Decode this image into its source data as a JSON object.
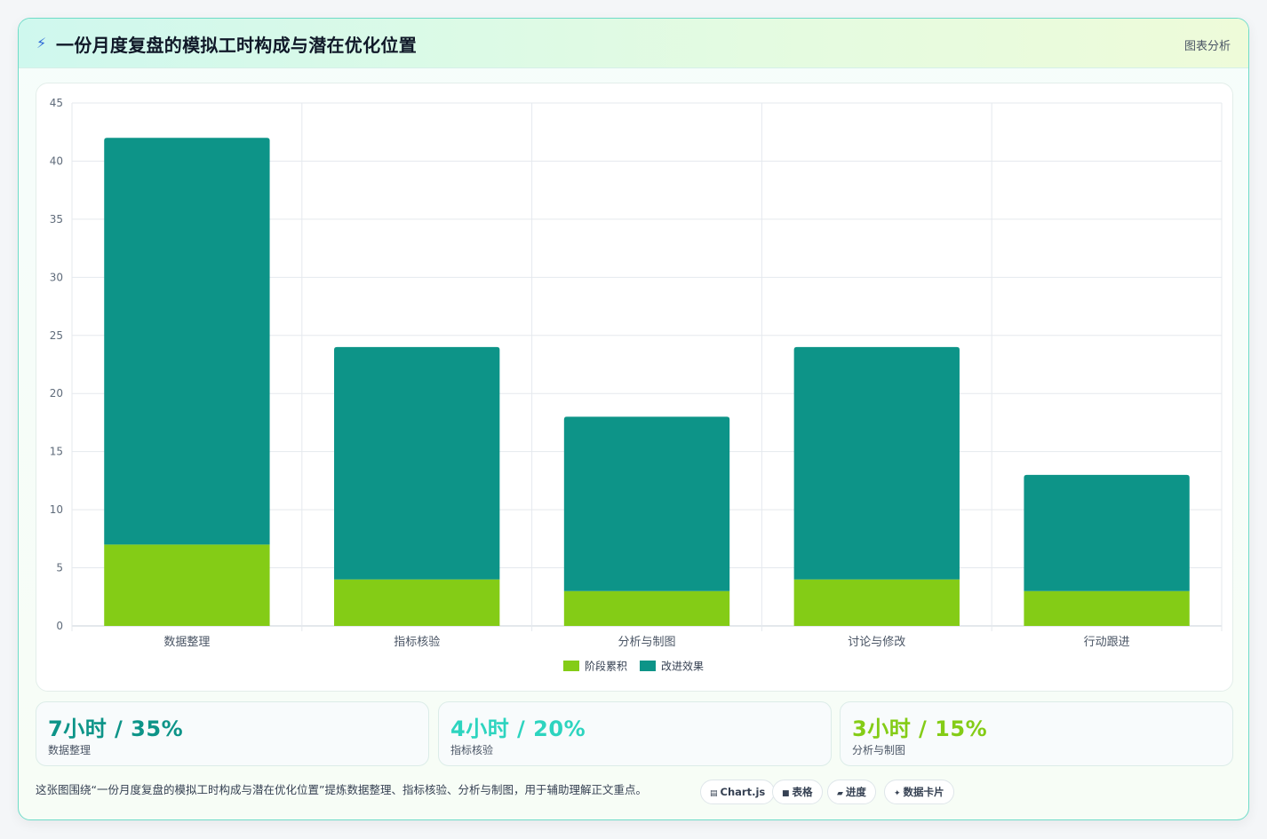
{
  "header": {
    "icon": "lightning-icon",
    "title": "一份月度复盘的模拟工时构成与潜在优化位置",
    "tag": "图表分析"
  },
  "chart_data": {
    "type": "bar",
    "stacked": true,
    "categories": [
      "数据整理",
      "指标核验",
      "分析与制图",
      "讨论与修改",
      "行动跟进"
    ],
    "series": [
      {
        "name": "阶段累积",
        "color": "#84cc16",
        "values": [
          7,
          4,
          3,
          4,
          3
        ]
      },
      {
        "name": "改进效果",
        "color": "#0d9488",
        "values": [
          35,
          20,
          15,
          20,
          10
        ]
      }
    ],
    "ylim": [
      0,
      45
    ],
    "yticks": [
      0,
      5,
      10,
      15,
      20,
      25,
      30,
      35,
      40,
      45
    ],
    "grid": true,
    "legend": "bottom"
  },
  "stats": [
    {
      "value": "7小时 / 35%",
      "label": "数据整理",
      "color": "#0d9488"
    },
    {
      "value": "4小时 / 20%",
      "label": "指标核验",
      "color": "#2dd4bf"
    },
    {
      "value": "3小时 / 15%",
      "label": "分析与制图",
      "color": "#84cc16"
    }
  ],
  "footer": {
    "note": "这张图围绕“一份月度复盘的模拟工时构成与潜在优化位置”提炼数据整理、指标核验、分析与制图，用于辅助理解正文重点。",
    "chips": [
      {
        "icon": "chart-icon",
        "glyph": "▤",
        "label": "Chart.js"
      },
      {
        "icon": "table-icon",
        "glyph": "■",
        "label": "表格"
      },
      {
        "icon": "progress-icon",
        "glyph": "▰",
        "label": "进度"
      },
      {
        "icon": "data-card-icon",
        "glyph": "✦",
        "label": "数据卡片"
      }
    ]
  }
}
